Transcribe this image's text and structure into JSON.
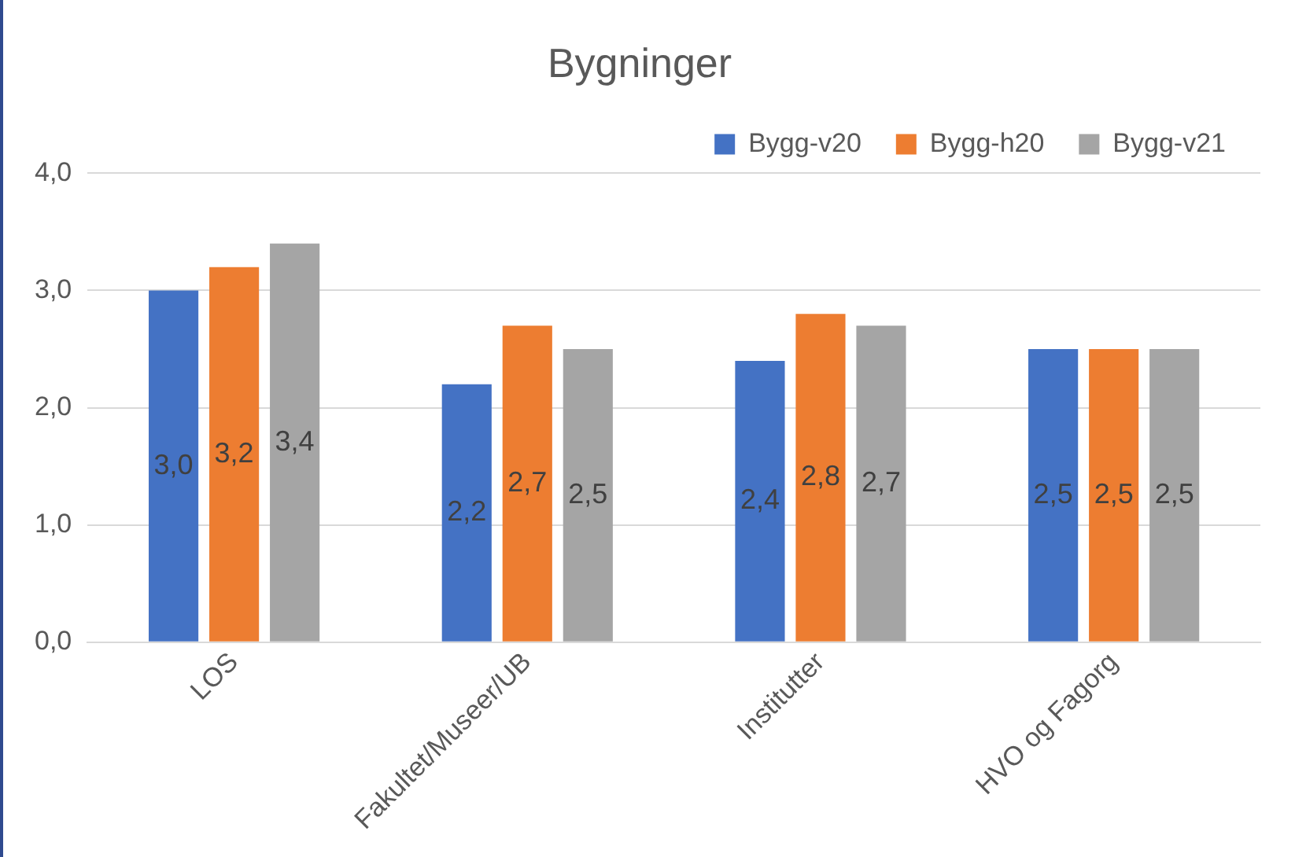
{
  "chart_data": {
    "type": "bar",
    "title": "Bygninger",
    "categories": [
      "LOS",
      "Fakultet/Museer/UB",
      "Institutter",
      "HVO og Fagorg"
    ],
    "series": [
      {
        "name": "Bygg-v20",
        "color": "#4472c4",
        "values": [
          3.0,
          2.2,
          2.4,
          2.5
        ],
        "value_labels": [
          "3,0",
          "2,2",
          "2,4",
          "2,5"
        ]
      },
      {
        "name": "Bygg-h20",
        "color": "#ed7d31",
        "values": [
          3.2,
          2.7,
          2.8,
          2.5
        ],
        "value_labels": [
          "3,2",
          "2,7",
          "2,8",
          "2,5"
        ]
      },
      {
        "name": "Bygg-v21",
        "color": "#a5a5a5",
        "values": [
          3.4,
          2.5,
          2.7,
          2.5
        ],
        "value_labels": [
          "3,4",
          "2,5",
          "2,7",
          "2,5"
        ]
      }
    ],
    "ylim": [
      0,
      4
    ],
    "yticks": [
      {
        "value": 0,
        "label": "0,0"
      },
      {
        "value": 1,
        "label": "1,0"
      },
      {
        "value": 2,
        "label": "2,0"
      },
      {
        "value": 3,
        "label": "3,0"
      },
      {
        "value": 4,
        "label": "4,0"
      }
    ],
    "grid": "y",
    "legend": "top right"
  }
}
